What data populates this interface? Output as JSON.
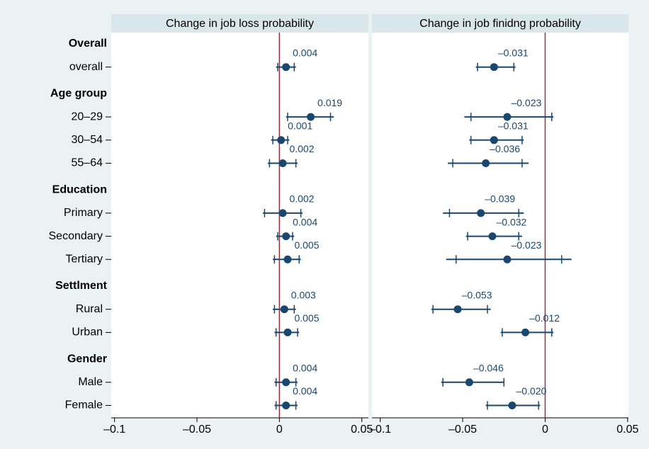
{
  "chart_data": {
    "type": "dot",
    "categories": [
      "Overall",
      "overall",
      "Age group",
      "20–29",
      "30–54",
      "55–64",
      "Education",
      "Primary",
      "Secondary",
      "Tertiary",
      "Settlment",
      "Rural",
      "Urban",
      "Gender",
      "Male",
      "Female"
    ],
    "color": "#1a476f",
    "refline": 0,
    "refline_color": "#90353b",
    "panels": [
      {
        "title": "Change in job loss probability",
        "xlim": [
          -0.102,
          0.054
        ],
        "xticks": [
          {
            "value": -0.1,
            "label": "–0.1"
          },
          {
            "value": -0.05,
            "label": "–0.05"
          },
          0,
          0.05
        ],
        "values": [
          null,
          0.004,
          null,
          0.019,
          0.001,
          0.002,
          null,
          0.002,
          0.004,
          0.005,
          null,
          0.003,
          0.005,
          null,
          0.004,
          0.004
        ],
        "ci_low": [
          null,
          -0.002,
          null,
          0.004,
          -0.005,
          -0.007,
          null,
          -0.01,
          -0.002,
          -0.004,
          null,
          -0.004,
          -0.003,
          null,
          -0.003,
          -0.003
        ],
        "ci_high": [
          null,
          0.01,
          null,
          0.033,
          0.006,
          0.011,
          null,
          0.014,
          0.009,
          0.013,
          null,
          0.01,
          0.012,
          null,
          0.011,
          0.011
        ],
        "ci90_low": [
          null,
          -0.001,
          null,
          0.005,
          -0.004,
          -0.006,
          null,
          -0.009,
          -0.001,
          -0.003,
          null,
          -0.003,
          -0.002,
          null,
          -0.002,
          -0.002
        ],
        "ci90_high": [
          null,
          0.009,
          null,
          0.031,
          0.005,
          0.01,
          null,
          0.013,
          0.008,
          0.012,
          null,
          0.009,
          0.011,
          null,
          0.01,
          0.01
        ]
      },
      {
        "title": "Change in job finidng probability",
        "xlim": [
          -0.105,
          0.0505
        ],
        "xticks": [
          {
            "value": -0.1,
            "label": "–0.1"
          },
          {
            "value": -0.05,
            "label": "–0.05"
          },
          0,
          0.05
        ],
        "values": [
          null,
          -0.031,
          null,
          -0.023,
          -0.031,
          -0.036,
          null,
          -0.039,
          -0.032,
          -0.023,
          null,
          -0.053,
          -0.012,
          null,
          -0.046,
          -0.02
        ],
        "value_labels": [
          null,
          "–0.031",
          null,
          "–0.023",
          "–0.031",
          "–0.036",
          null,
          "–0.039",
          "–0.032",
          "–0.023",
          null,
          "–0.053",
          "–0.012",
          null,
          "–0.046",
          "–0.020"
        ],
        "ci_low": [
          null,
          -0.042,
          null,
          -0.049,
          -0.046,
          -0.059,
          null,
          -0.062,
          -0.048,
          -0.06,
          null,
          -0.069,
          -0.027,
          null,
          -0.063,
          -0.036
        ],
        "ci_high": [
          null,
          -0.018,
          null,
          0.005,
          -0.013,
          -0.01,
          null,
          -0.013,
          -0.014,
          0.016,
          null,
          -0.033,
          0.005,
          null,
          -0.025,
          -0.003
        ],
        "ci90_low": [
          null,
          -0.041,
          null,
          -0.045,
          -0.045,
          -0.056,
          null,
          -0.058,
          -0.047,
          -0.054,
          null,
          -0.068,
          -0.026,
          null,
          -0.062,
          -0.035
        ],
        "ci90_high": [
          null,
          -0.019,
          null,
          0.004,
          -0.014,
          -0.014,
          null,
          -0.016,
          -0.016,
          0.01,
          null,
          -0.035,
          0.004,
          null,
          -0.025,
          -0.004
        ]
      }
    ]
  }
}
